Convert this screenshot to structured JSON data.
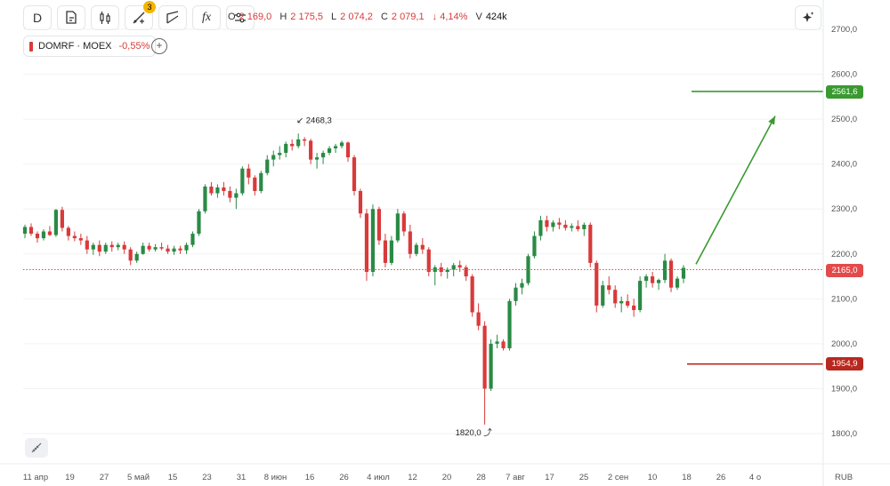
{
  "toolbar": {
    "interval": "D",
    "indicators_badge": "3",
    "fx_label": "fx",
    "icons": [
      "new-document-icon",
      "candles-icon",
      "draw-tools-icon",
      "line-tool-icon",
      "fx-icon",
      "settings-sliders-icon"
    ]
  },
  "ohlc": {
    "o_label": "O",
    "o": "2 169,0",
    "h_label": "H",
    "h": "2 175,5",
    "l_label": "L",
    "l": "2 074,2",
    "c_label": "C",
    "c": "2 079,1",
    "change": "↓ 4,14%",
    "v_label": "V",
    "v": "424k"
  },
  "legend": {
    "ticker": "DOMRF · MOEX",
    "change": "-0,55%"
  },
  "annotations": {
    "high": "2468,3",
    "low": "1820,0"
  },
  "currency": "RUB",
  "price_tags": {
    "target": "2561,6",
    "current": "2165,0",
    "stop": "1954,9"
  },
  "colors": {
    "up": "#2a8a45",
    "down": "#d93a3a",
    "target": "#3a9a30",
    "stop": "#b8281e",
    "current": "#e34a4a"
  },
  "chart_data": {
    "type": "candlestick",
    "y_ticks": [
      "2700,0",
      "2600,0",
      "2500,0",
      "2400,0",
      "2300,0",
      "2200,0",
      "2100,0",
      "2000,0",
      "1900,0",
      "1800,0"
    ],
    "y_tick_values": [
      2700,
      2600,
      2500,
      2400,
      2300,
      2200,
      2100,
      2000,
      1900,
      1800
    ],
    "ylim": [
      1760,
      2730
    ],
    "x_ticks": [
      "11 апр",
      "19",
      "27",
      "5 май",
      "15",
      "23",
      "31",
      "8 июн",
      "16",
      "26",
      "4 июл",
      "12",
      "20",
      "28",
      "7 авг",
      "17",
      "25",
      "2 сен",
      "10",
      "18",
      "26",
      "4 о"
    ],
    "last_price": 2165.0,
    "levels": {
      "target": 2561.6,
      "stop": 1954.9
    },
    "candles_ohlc": [
      [
        2245,
        2265,
        2235,
        2260
      ],
      [
        2260,
        2268,
        2240,
        2245
      ],
      [
        2245,
        2250,
        2225,
        2235
      ],
      [
        2235,
        2255,
        2230,
        2250
      ],
      [
        2250,
        2262,
        2240,
        2242
      ],
      [
        2242,
        2300,
        2238,
        2298
      ],
      [
        2298,
        2305,
        2250,
        2258
      ],
      [
        2258,
        2262,
        2230,
        2240
      ],
      [
        2240,
        2250,
        2228,
        2235
      ],
      [
        2235,
        2245,
        2220,
        2230
      ],
      [
        2230,
        2240,
        2200,
        2210
      ],
      [
        2210,
        2225,
        2198,
        2220
      ],
      [
        2220,
        2230,
        2195,
        2205
      ],
      [
        2205,
        2225,
        2200,
        2220
      ],
      [
        2220,
        2228,
        2205,
        2215
      ],
      [
        2215,
        2225,
        2208,
        2220
      ],
      [
        2220,
        2228,
        2200,
        2210
      ],
      [
        2210,
        2215,
        2175,
        2185
      ],
      [
        2185,
        2205,
        2180,
        2200
      ],
      [
        2200,
        2225,
        2198,
        2218
      ],
      [
        2218,
        2225,
        2205,
        2210
      ],
      [
        2210,
        2222,
        2205,
        2215
      ],
      [
        2215,
        2225,
        2208,
        2212
      ],
      [
        2212,
        2220,
        2200,
        2205
      ],
      [
        2205,
        2218,
        2198,
        2212
      ],
      [
        2212,
        2218,
        2200,
        2208
      ],
      [
        2208,
        2225,
        2200,
        2220
      ],
      [
        2220,
        2250,
        2215,
        2245
      ],
      [
        2245,
        2300,
        2240,
        2295
      ],
      [
        2295,
        2355,
        2290,
        2350
      ],
      [
        2350,
        2360,
        2330,
        2335
      ],
      [
        2335,
        2355,
        2325,
        2348
      ],
      [
        2348,
        2360,
        2330,
        2340
      ],
      [
        2340,
        2350,
        2315,
        2325
      ],
      [
        2325,
        2345,
        2300,
        2335
      ],
      [
        2335,
        2395,
        2330,
        2390
      ],
      [
        2390,
        2400,
        2355,
        2370
      ],
      [
        2370,
        2375,
        2330,
        2340
      ],
      [
        2340,
        2385,
        2335,
        2380
      ],
      [
        2380,
        2420,
        2375,
        2410
      ],
      [
        2410,
        2430,
        2395,
        2420
      ],
      [
        2420,
        2440,
        2410,
        2425
      ],
      [
        2425,
        2450,
        2415,
        2445
      ],
      [
        2445,
        2455,
        2430,
        2440
      ],
      [
        2440,
        2468,
        2435,
        2455
      ],
      [
        2455,
        2460,
        2440,
        2452
      ],
      [
        2452,
        2456,
        2400,
        2410
      ],
      [
        2410,
        2425,
        2390,
        2415
      ],
      [
        2415,
        2430,
        2400,
        2425
      ],
      [
        2425,
        2440,
        2420,
        2435
      ],
      [
        2435,
        2445,
        2425,
        2440
      ],
      [
        2440,
        2452,
        2435,
        2448
      ],
      [
        2448,
        2450,
        2405,
        2415
      ],
      [
        2415,
        2420,
        2330,
        2340
      ],
      [
        2340,
        2345,
        2280,
        2290
      ],
      [
        2290,
        2300,
        2140,
        2160
      ],
      [
        2160,
        2310,
        2150,
        2300
      ],
      [
        2300,
        2305,
        2220,
        2230
      ],
      [
        2230,
        2245,
        2170,
        2180
      ],
      [
        2180,
        2240,
        2175,
        2230
      ],
      [
        2230,
        2300,
        2225,
        2290
      ],
      [
        2290,
        2295,
        2240,
        2250
      ],
      [
        2250,
        2265,
        2190,
        2200
      ],
      [
        2200,
        2225,
        2195,
        2220
      ],
      [
        2220,
        2235,
        2200,
        2210
      ],
      [
        2210,
        2215,
        2150,
        2160
      ],
      [
        2160,
        2175,
        2130,
        2170
      ],
      [
        2170,
        2180,
        2150,
        2160
      ],
      [
        2160,
        2170,
        2145,
        2165
      ],
      [
        2165,
        2180,
        2150,
        2175
      ],
      [
        2175,
        2185,
        2160,
        2170
      ],
      [
        2170,
        2175,
        2140,
        2150
      ],
      [
        2150,
        2155,
        2060,
        2070
      ],
      [
        2070,
        2090,
        2030,
        2040
      ],
      [
        2040,
        2050,
        1820,
        1900
      ],
      [
        1900,
        2010,
        1895,
        2000
      ],
      [
        2000,
        2020,
        1990,
        2005
      ],
      [
        2005,
        2010,
        1985,
        1990
      ],
      [
        1990,
        2100,
        1985,
        2095
      ],
      [
        2095,
        2135,
        2085,
        2125
      ],
      [
        2125,
        2145,
        2110,
        2135
      ],
      [
        2135,
        2200,
        2130,
        2195
      ],
      [
        2195,
        2250,
        2190,
        2240
      ],
      [
        2240,
        2285,
        2230,
        2275
      ],
      [
        2275,
        2285,
        2250,
        2260
      ],
      [
        2260,
        2275,
        2250,
        2270
      ],
      [
        2270,
        2280,
        2255,
        2265
      ],
      [
        2265,
        2275,
        2252,
        2258
      ],
      [
        2258,
        2268,
        2250,
        2262
      ],
      [
        2262,
        2275,
        2250,
        2255
      ],
      [
        2255,
        2270,
        2240,
        2265
      ],
      [
        2265,
        2270,
        2170,
        2180
      ],
      [
        2180,
        2185,
        2070,
        2085
      ],
      [
        2085,
        2140,
        2080,
        2130
      ],
      [
        2130,
        2150,
        2110,
        2120
      ],
      [
        2120,
        2130,
        2080,
        2090
      ],
      [
        2090,
        2105,
        2070,
        2095
      ],
      [
        2095,
        2110,
        2080,
        2085
      ],
      [
        2085,
        2100,
        2060,
        2075
      ],
      [
        2075,
        2150,
        2070,
        2140
      ],
      [
        2140,
        2155,
        2125,
        2150
      ],
      [
        2150,
        2160,
        2125,
        2135
      ],
      [
        2135,
        2145,
        2120,
        2142
      ],
      [
        2142,
        2200,
        2135,
        2185
      ],
      [
        2185,
        2190,
        2115,
        2125
      ],
      [
        2125,
        2150,
        2120,
        2145
      ],
      [
        2145,
        2175,
        2135,
        2169
      ]
    ]
  }
}
